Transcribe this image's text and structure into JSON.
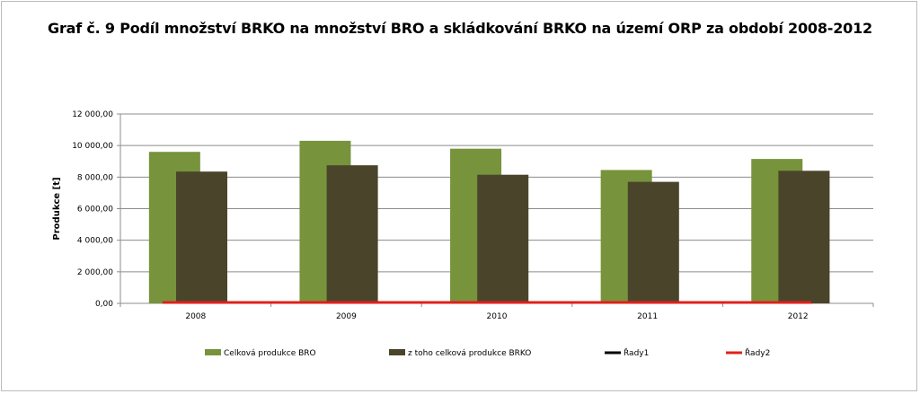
{
  "chart_data": {
    "type": "bar",
    "title": "Graf č. 9 Podíl množství BRKO na množství BRO a skládkování BRKO na území ORP za období 2008-2012",
    "ylabel": "Produkce [t]",
    "xlabel": "",
    "ylim": [
      0,
      12000
    ],
    "yticks": [
      0,
      2000,
      4000,
      6000,
      8000,
      10000,
      12000
    ],
    "ytick_labels": [
      "0,00",
      "2 000,00",
      "4 000,00",
      "6 000,00",
      "8 000,00",
      "10 000,00",
      "12 000,00"
    ],
    "categories": [
      "2008",
      "2009",
      "2010",
      "2011",
      "2012"
    ],
    "grid": true,
    "legend_position": "bottom",
    "series": [
      {
        "name": "Celková produkce BRO",
        "kind": "bar",
        "color": "#77933c",
        "values": [
          9600,
          10300,
          9800,
          8450,
          9150
        ]
      },
      {
        "name": "z toho celková produkce BRKO",
        "kind": "bar",
        "color": "#4a452a",
        "values": [
          8350,
          8750,
          8150,
          7700,
          8400
        ]
      },
      {
        "name": "Řady1",
        "kind": "line",
        "color": "#000000",
        "values": [
          0,
          0,
          0,
          0,
          0
        ]
      },
      {
        "name": "Řady2",
        "kind": "line",
        "color": "#e0201b",
        "values": [
          0,
          0,
          0,
          0,
          0
        ]
      }
    ]
  }
}
